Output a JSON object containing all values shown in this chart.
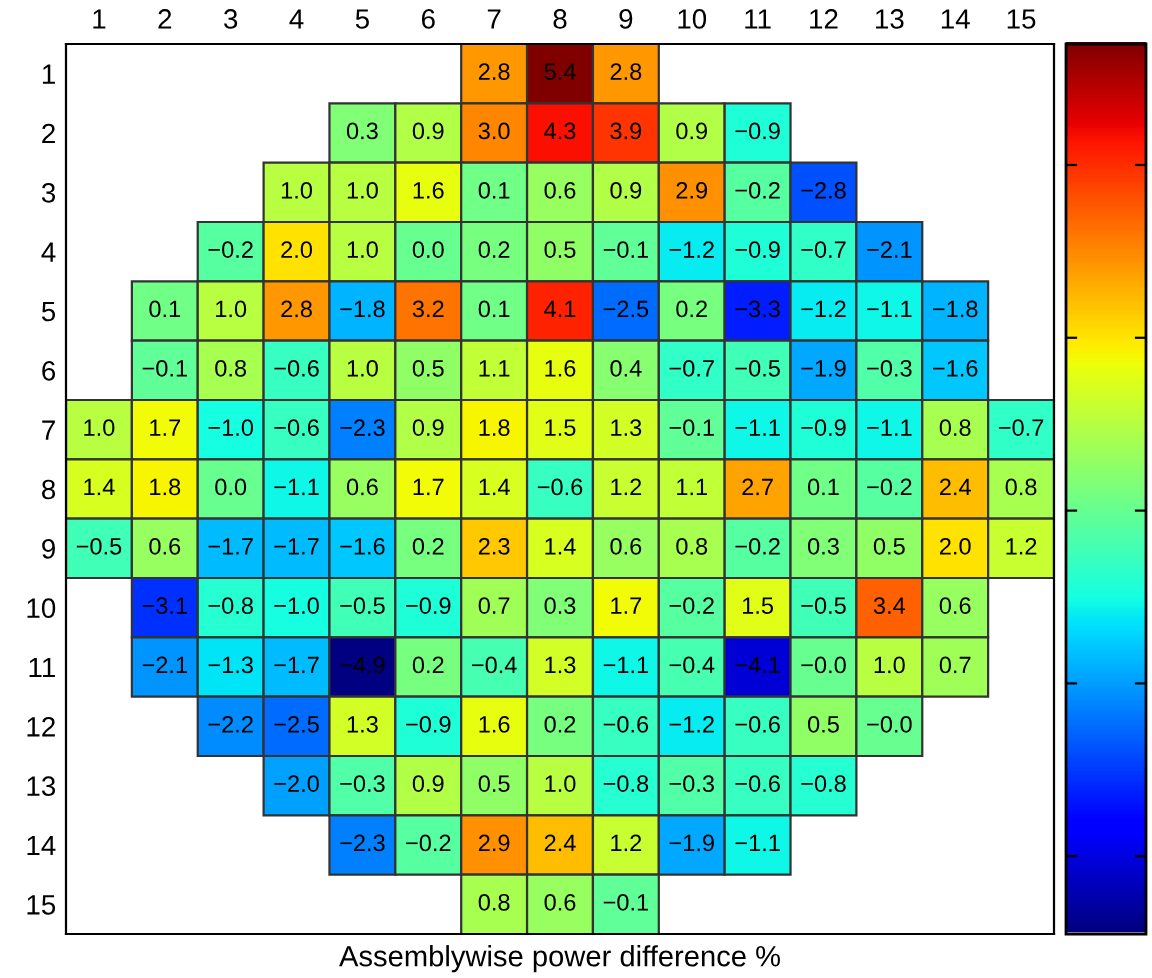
{
  "chart_data": {
    "type": "heatmap",
    "xlabel": "Assemblywise power difference %",
    "categories": [
      "1",
      "2",
      "3",
      "4",
      "5",
      "6",
      "7",
      "8",
      "9",
      "10",
      "11",
      "12",
      "13",
      "14",
      "15"
    ],
    "y_categories": [
      "1",
      "2",
      "3",
      "4",
      "5",
      "6",
      "7",
      "8",
      "9",
      "10",
      "11",
      "12",
      "13",
      "14",
      "15"
    ],
    "cells": [
      [
        null,
        null,
        null,
        null,
        null,
        null,
        2.8,
        5.4,
        2.8,
        null,
        null,
        null,
        null,
        null,
        null
      ],
      [
        null,
        null,
        null,
        null,
        0.3,
        0.9,
        3.0,
        4.3,
        3.9,
        0.9,
        -0.9,
        null,
        null,
        null,
        null
      ],
      [
        null,
        null,
        null,
        1.0,
        1.0,
        1.6,
        0.1,
        0.6,
        0.9,
        2.9,
        -0.2,
        -2.8,
        null,
        null,
        null
      ],
      [
        null,
        null,
        -0.2,
        2.0,
        1.0,
        0.0,
        0.2,
        0.5,
        -0.1,
        -1.2,
        -0.9,
        -0.7,
        -2.1,
        null,
        null
      ],
      [
        null,
        0.1,
        1.0,
        2.8,
        -1.8,
        3.2,
        0.1,
        4.1,
        -2.5,
        0.2,
        -3.3,
        -1.2,
        -1.1,
        -1.8,
        null
      ],
      [
        null,
        -0.1,
        0.8,
        -0.6,
        1.0,
        0.5,
        1.1,
        1.6,
        0.4,
        -0.7,
        -0.5,
        -1.9,
        -0.3,
        -1.6,
        null
      ],
      [
        1.0,
        1.7,
        -1.0,
        -0.6,
        -2.3,
        0.9,
        1.8,
        1.5,
        1.3,
        -0.1,
        -1.1,
        -0.9,
        -1.1,
        0.8,
        -0.7
      ],
      [
        1.4,
        1.8,
        0.0,
        -1.1,
        0.6,
        1.7,
        1.4,
        -0.6,
        1.2,
        1.1,
        2.7,
        0.1,
        -0.2,
        2.4,
        0.8
      ],
      [
        -0.5,
        0.6,
        -1.7,
        -1.7,
        -1.6,
        0.2,
        2.3,
        1.4,
        0.6,
        0.8,
        -0.2,
        0.3,
        0.5,
        2.0,
        1.2
      ],
      [
        null,
        -3.1,
        -0.8,
        -1.0,
        -0.5,
        -0.9,
        0.7,
        0.3,
        1.7,
        -0.2,
        1.5,
        -0.5,
        3.4,
        0.6,
        null
      ],
      [
        null,
        -2.1,
        -1.3,
        -1.7,
        -4.9,
        0.2,
        -0.4,
        1.3,
        -1.1,
        -0.4,
        -4.1,
        -0.0,
        1.0,
        0.7,
        null
      ],
      [
        null,
        null,
        -2.2,
        -2.5,
        1.3,
        -0.9,
        1.6,
        0.2,
        -0.6,
        -1.2,
        -0.6,
        0.5,
        -0.0,
        null,
        null
      ],
      [
        null,
        null,
        null,
        -2.0,
        -0.3,
        0.9,
        0.5,
        1.0,
        -0.8,
        -0.3,
        -0.6,
        -0.8,
        null,
        null,
        null
      ],
      [
        null,
        null,
        null,
        null,
        -2.3,
        -0.2,
        2.9,
        2.4,
        1.2,
        -1.9,
        -1.1,
        null,
        null,
        null,
        null
      ],
      [
        null,
        null,
        null,
        null,
        null,
        null,
        0.8,
        0.6,
        -0.1,
        null,
        null,
        null,
        null,
        null,
        null
      ]
    ],
    "cell_labels": [
      [
        null,
        null,
        null,
        null,
        null,
        null,
        "2.8",
        "5.4",
        "2.8",
        null,
        null,
        null,
        null,
        null,
        null
      ],
      [
        null,
        null,
        null,
        null,
        "0.3",
        "0.9",
        "3.0",
        "4.3",
        "3.9",
        "0.9",
        "−0.9",
        null,
        null,
        null,
        null
      ],
      [
        null,
        null,
        null,
        "1.0",
        "1.0",
        "1.6",
        "0.1",
        "0.6",
        "0.9",
        "2.9",
        "−0.2",
        "−2.8",
        null,
        null,
        null
      ],
      [
        null,
        null,
        "−0.2",
        "2.0",
        "1.0",
        "0.0",
        "0.2",
        "0.5",
        "−0.1",
        "−1.2",
        "−0.9",
        "−0.7",
        "−2.1",
        null,
        null
      ],
      [
        null,
        "0.1",
        "1.0",
        "2.8",
        "−1.8",
        "3.2",
        "0.1",
        "4.1",
        "−2.5",
        "0.2",
        "−3.3",
        "−1.2",
        "−1.1",
        "−1.8",
        null
      ],
      [
        null,
        "−0.1",
        "0.8",
        "−0.6",
        "1.0",
        "0.5",
        "1.1",
        "1.6",
        "0.4",
        "−0.7",
        "−0.5",
        "−1.9",
        "−0.3",
        "−1.6",
        null
      ],
      [
        "1.0",
        "1.7",
        "−1.0",
        "−0.6",
        "−2.3",
        "0.9",
        "1.8",
        "1.5",
        "1.3",
        "−0.1",
        "−1.1",
        "−0.9",
        "−1.1",
        "0.8",
        "−0.7"
      ],
      [
        "1.4",
        "1.8",
        "0.0",
        "−1.1",
        "0.6",
        "1.7",
        "1.4",
        "−0.6",
        "1.2",
        "1.1",
        "2.7",
        "0.1",
        "−0.2",
        "2.4",
        "0.8"
      ],
      [
        "−0.5",
        "0.6",
        "−1.7",
        "−1.7",
        "−1.6",
        "0.2",
        "2.3",
        "1.4",
        "0.6",
        "0.8",
        "−0.2",
        "0.3",
        "0.5",
        "2.0",
        "1.2"
      ],
      [
        null,
        "−3.1",
        "−0.8",
        "−1.0",
        "−0.5",
        "−0.9",
        "0.7",
        "0.3",
        "1.7",
        "−0.2",
        "1.5",
        "−0.5",
        "3.4",
        "0.6",
        null
      ],
      [
        null,
        "−2.1",
        "−1.3",
        "−1.7",
        "−4.9",
        "0.2",
        "−0.4",
        "1.3",
        "−1.1",
        "−0.4",
        "−4.1",
        "−0.0",
        "1.0",
        "0.7",
        null
      ],
      [
        null,
        null,
        "−2.2",
        "−2.5",
        "1.3",
        "−0.9",
        "1.6",
        "0.2",
        "−0.6",
        "−1.2",
        "−0.6",
        "0.5",
        "−0.0",
        null,
        null
      ],
      [
        null,
        null,
        null,
        "−2.0",
        "−0.3",
        "0.9",
        "0.5",
        "1.0",
        "−0.8",
        "−0.3",
        "−0.6",
        "−0.8",
        null,
        null,
        null
      ],
      [
        null,
        null,
        null,
        null,
        "−2.3",
        "−0.2",
        "2.9",
        "2.4",
        "1.2",
        "−1.9",
        "−1.1",
        null,
        null,
        null,
        null
      ],
      [
        null,
        null,
        null,
        null,
        null,
        null,
        "0.8",
        "0.6",
        "−0.1",
        null,
        null,
        null,
        null,
        null,
        null
      ]
    ],
    "grid": false
  }
}
